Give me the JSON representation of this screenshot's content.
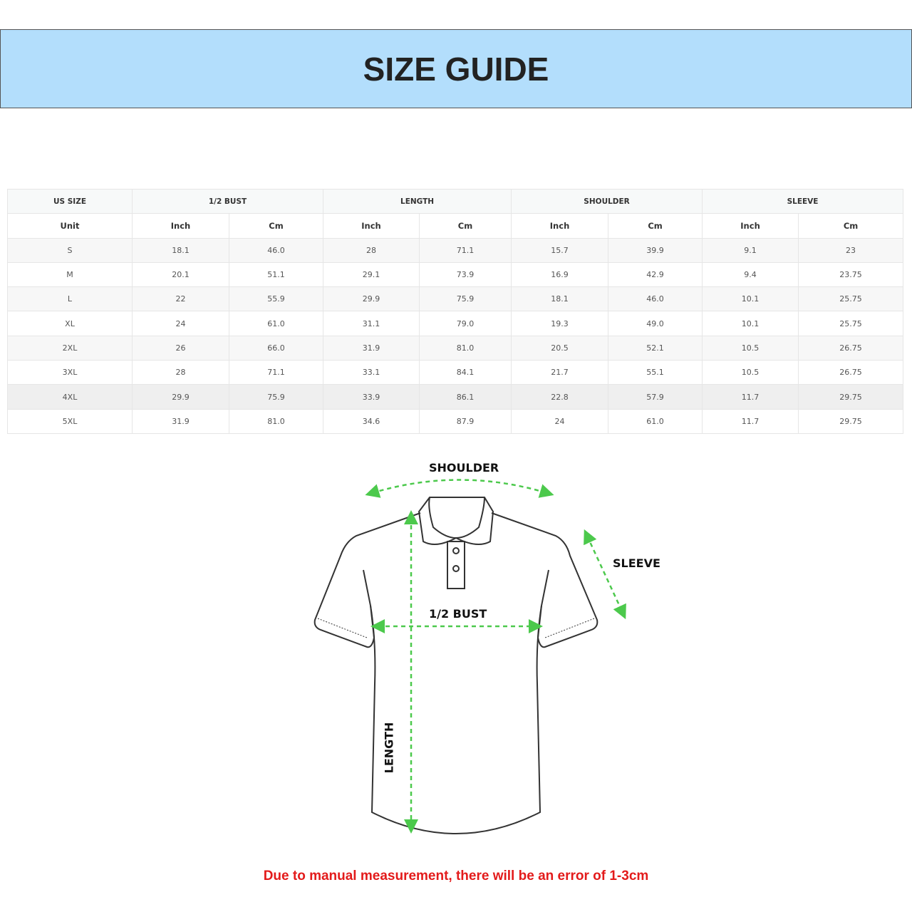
{
  "title": "SIZE GUIDE",
  "table": {
    "groups": [
      "US SIZE",
      "1/2 BUST",
      "LENGTH",
      "SHOULDER",
      "SLEEVE"
    ],
    "unit_row": [
      "Unit",
      "Inch",
      "Cm",
      "Inch",
      "Cm",
      "Inch",
      "Cm",
      "Inch",
      "Cm"
    ],
    "rows": [
      [
        "S",
        "18.1",
        "46.0",
        "28",
        "71.1",
        "15.7",
        "39.9",
        "9.1",
        "23"
      ],
      [
        "M",
        "20.1",
        "51.1",
        "29.1",
        "73.9",
        "16.9",
        "42.9",
        "9.4",
        "23.75"
      ],
      [
        "L",
        "22",
        "55.9",
        "29.9",
        "75.9",
        "18.1",
        "46.0",
        "10.1",
        "25.75"
      ],
      [
        "XL",
        "24",
        "61.0",
        "31.1",
        "79.0",
        "19.3",
        "49.0",
        "10.1",
        "25.75"
      ],
      [
        "2XL",
        "26",
        "66.0",
        "31.9",
        "81.0",
        "20.5",
        "52.1",
        "10.5",
        "26.75"
      ],
      [
        "3XL",
        "28",
        "71.1",
        "33.1",
        "84.1",
        "21.7",
        "55.1",
        "10.5",
        "26.75"
      ],
      [
        "4XL",
        "29.9",
        "75.9",
        "33.9",
        "86.1",
        "22.8",
        "57.9",
        "11.7",
        "29.75"
      ],
      [
        "5XL",
        "31.9",
        "81.0",
        "34.6",
        "87.9",
        "24",
        "61.0",
        "11.7",
        "29.75"
      ]
    ]
  },
  "diagram": {
    "shoulder": "SHOULDER",
    "sleeve": "SLEEVE",
    "bust": "1/2 BUST",
    "length": "LENGTH"
  },
  "note": "Due to manual measurement, there will be an error of 1-3cm",
  "colors": {
    "banner": "#b3defc",
    "arrow": "#4cc94c",
    "note": "#e31b1b"
  }
}
